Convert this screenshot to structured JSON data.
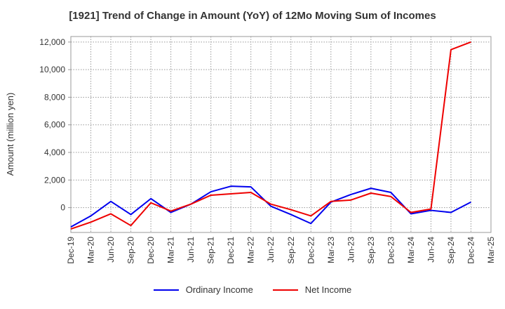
{
  "chart_data": {
    "type": "line",
    "title": "[1921]  Trend of Change in Amount (YoY) of 12Mo Moving Sum of Incomes",
    "xlabel": "",
    "ylabel": "Amount (million yen)",
    "ylim": [
      -1800,
      12400
    ],
    "yticks": [
      0,
      2000,
      4000,
      6000,
      8000,
      10000,
      12000
    ],
    "ytick_labels": [
      "0",
      "2,000",
      "4,000",
      "6,000",
      "8,000",
      "10,000",
      "12,000"
    ],
    "categories": [
      "Dec-19",
      "Mar-20",
      "Jun-20",
      "Sep-20",
      "Dec-20",
      "Mar-21",
      "Jun-21",
      "Sep-21",
      "Dec-21",
      "Mar-22",
      "Jun-22",
      "Sep-22",
      "Dec-22",
      "Mar-23",
      "Jun-23",
      "Sep-23",
      "Dec-23",
      "Mar-24",
      "Jun-24",
      "Sep-24",
      "Dec-24",
      "Mar-25"
    ],
    "grid": true,
    "legend_position": "bottom",
    "series": [
      {
        "name": "Ordinary Income",
        "color": "#0000ee",
        "values": [
          -1400,
          -600,
          450,
          -500,
          650,
          -350,
          250,
          1150,
          1550,
          1500,
          100,
          -500,
          -1150,
          400,
          950,
          1400,
          1100,
          -450,
          -200,
          -350,
          400,
          null
        ]
      },
      {
        "name": "Net Income",
        "color": "#ee0000",
        "values": [
          -1550,
          -1050,
          -450,
          -1300,
          350,
          -250,
          250,
          900,
          1000,
          1100,
          250,
          -150,
          -600,
          450,
          550,
          1050,
          800,
          -350,
          -100,
          11450,
          12000,
          null
        ]
      }
    ]
  }
}
